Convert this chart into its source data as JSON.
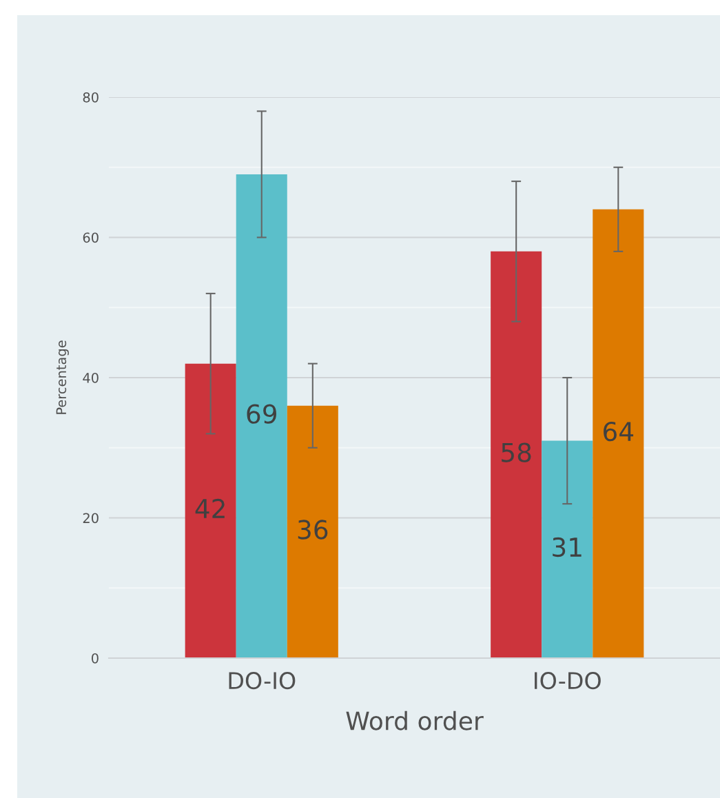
{
  "chart_data": {
    "type": "bar",
    "xlabel": "Word order",
    "ylabel": "Percentage",
    "categories": [
      "DO-IO",
      "IO-DO"
    ],
    "series": [
      {
        "color": "#cc343c",
        "values": [
          42,
          58
        ],
        "errors": [
          10,
          10
        ]
      },
      {
        "color": "#5bbfca",
        "values": [
          69,
          31
        ],
        "errors": [
          9,
          9
        ]
      },
      {
        "color": "#dd7a00",
        "values": [
          36,
          64
        ],
        "errors": [
          6,
          6
        ]
      }
    ],
    "ylim": [
      0,
      80
    ],
    "yticks": [
      0,
      {
        "value": 10,
        "label": null
      },
      20,
      {
        "value": 30,
        "label": null
      },
      40,
      {
        "value": 50,
        "label": null
      },
      60,
      {
        "value": 70,
        "label": null
      },
      80
    ],
    "grid": "y",
    "data_labels": true,
    "legend": false
  }
}
